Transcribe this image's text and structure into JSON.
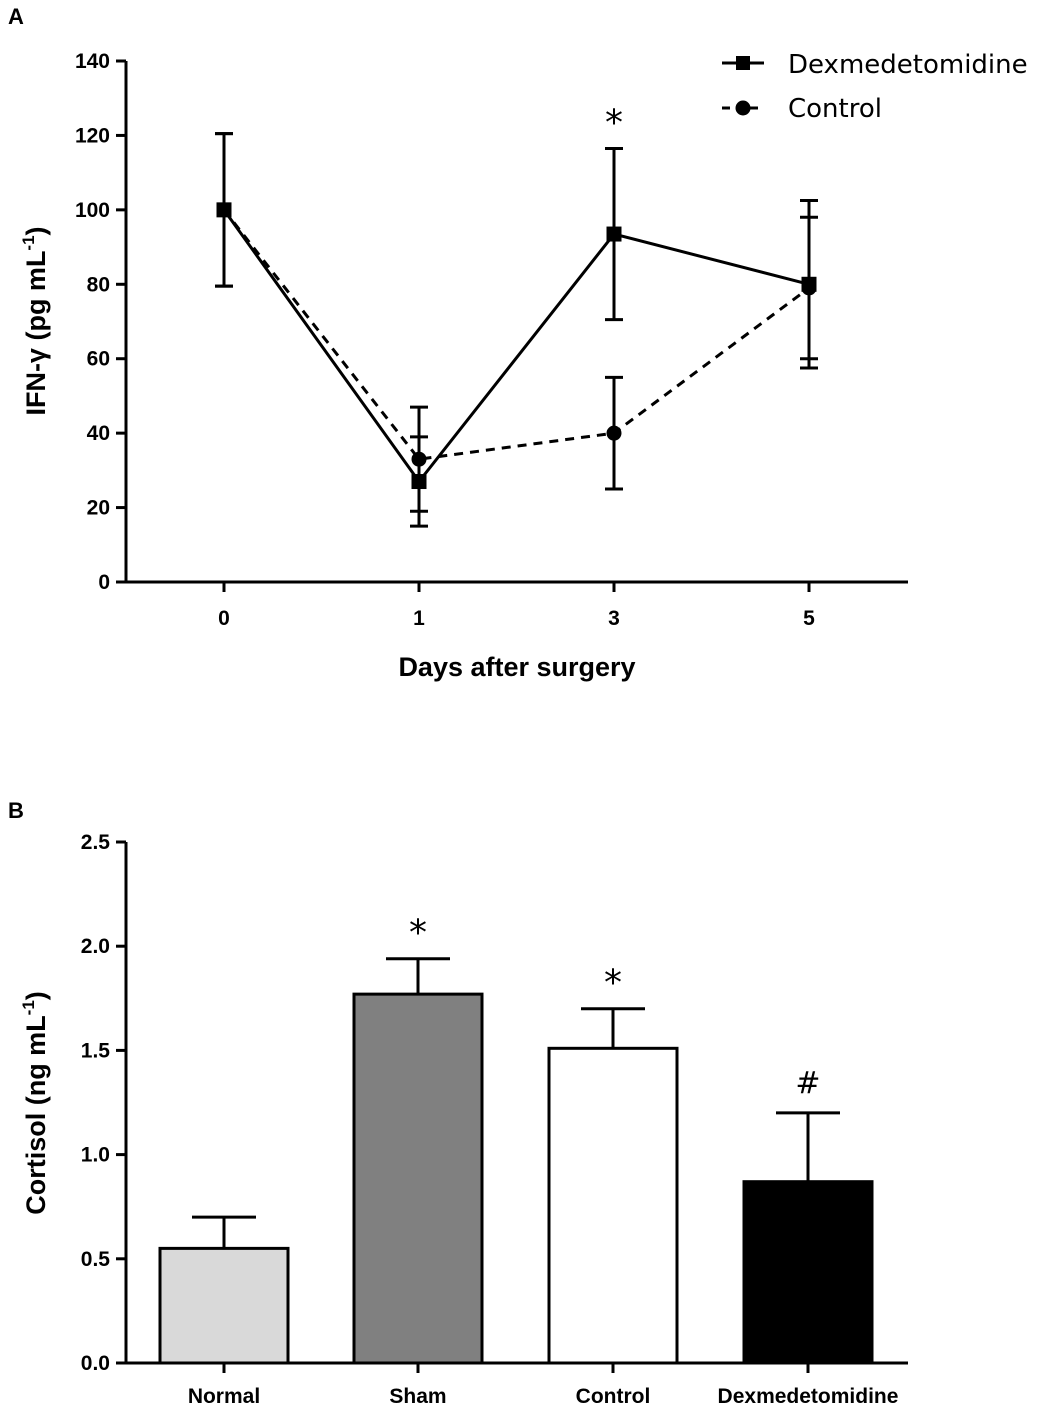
{
  "chart_data": [
    {
      "panel": "A",
      "type": "line",
      "xlabel": "Days after surgery",
      "ylabel_main": "IFN-γ (pg mL",
      "ylabel_sup": "-1",
      "ylabel_close": ")",
      "categories": [
        "0",
        "1",
        "3",
        "5"
      ],
      "ylim": [
        0,
        140
      ],
      "yticks": [
        "0",
        "20",
        "40",
        "60",
        "80",
        "100",
        "120",
        "140"
      ],
      "legend_position": "top-right",
      "series": [
        {
          "name": "Dexmedetomidine",
          "style": "solid-square",
          "values": [
            100,
            27,
            93.5,
            80
          ],
          "error": [
            20.5,
            12,
            23,
            22.5
          ]
        },
        {
          "name": "Control",
          "style": "dashed-circle",
          "values": [
            100,
            33,
            40,
            79
          ],
          "error": [
            20.5,
            14,
            15,
            19
          ]
        }
      ],
      "annotations": [
        {
          "text": "*",
          "category": "3"
        }
      ]
    },
    {
      "panel": "B",
      "type": "bar",
      "ylabel_main": "Cortisol (ng mL",
      "ylabel_sup": "-1",
      "ylabel_close": ")",
      "xlabel": "",
      "categories": [
        "Normal",
        "Sham",
        "Control",
        "Dexmedetomidine"
      ],
      "values": [
        0.55,
        1.77,
        1.51,
        0.87
      ],
      "error": [
        0.15,
        0.17,
        0.19,
        0.33
      ],
      "colors": [
        "#d9d9d9",
        "#808080",
        "#ffffff",
        "#000000"
      ],
      "ylim": [
        0,
        2.5
      ],
      "yticks": [
        "0.0",
        "0.5",
        "1.0",
        "1.5",
        "2.0",
        "2.5"
      ],
      "annotations": [
        "",
        "*",
        "*",
        "#"
      ]
    }
  ]
}
